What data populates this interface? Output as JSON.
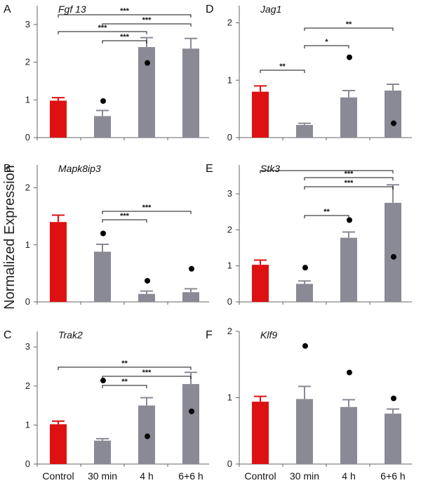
{
  "figure": {
    "ylabel": "Normalized Expression",
    "categories": [
      "Control",
      "30 min",
      "4 h",
      "6+6 h"
    ],
    "colors": {
      "control": "#dd1111",
      "treatment": "#8a8a96",
      "axis": "#666666"
    }
  },
  "chart_data": [
    {
      "type": "bar",
      "panel": "A",
      "gene": "Fgf 13",
      "categories": [
        "Control",
        "30 min",
        "4 h",
        "6+6 h"
      ],
      "values": [
        0.98,
        0.57,
        2.4,
        2.36
      ],
      "errors": [
        0.08,
        0.15,
        0.25,
        0.27
      ],
      "points": [
        null,
        0.97,
        1.98,
        null
      ],
      "ylim": [
        0,
        3.5
      ],
      "yticks": [
        0,
        1,
        2,
        3
      ],
      "significance": [
        {
          "from": 1,
          "to": 2,
          "label": "***",
          "level": 0
        },
        {
          "from": 0,
          "to": 2,
          "label": "***",
          "level": 1
        },
        {
          "from": 1,
          "to": 3,
          "label": "***",
          "level": 2
        },
        {
          "from": 0,
          "to": 3,
          "label": "***",
          "level": 3
        }
      ]
    },
    {
      "type": "bar",
      "panel": "B",
      "gene": "Mapk8ip3",
      "categories": [
        "Control",
        "30 min",
        "4 h",
        "6+6 h"
      ],
      "values": [
        1.4,
        0.88,
        0.14,
        0.17
      ],
      "errors": [
        0.12,
        0.13,
        0.05,
        0.06
      ],
      "points": [
        null,
        1.2,
        0.37,
        0.58
      ],
      "ylim": [
        0,
        2.4
      ],
      "yticks": [
        0,
        1,
        2
      ],
      "significance": [
        {
          "from": 1,
          "to": 2,
          "label": "***",
          "level": 0
        },
        {
          "from": 1,
          "to": 3,
          "label": "***",
          "level": 1
        }
      ]
    },
    {
      "type": "bar",
      "panel": "C",
      "gene": "Trak2",
      "categories": [
        "Control",
        "30 min",
        "4 h",
        "6+6 h"
      ],
      "values": [
        1.02,
        0.6,
        1.5,
        2.05
      ],
      "errors": [
        0.08,
        0.05,
        0.2,
        0.3
      ],
      "points": [
        null,
        2.14,
        0.71,
        1.35
      ],
      "ylim": [
        0,
        3.4
      ],
      "yticks": [
        0,
        1,
        2,
        3
      ],
      "significance": [
        {
          "from": 1,
          "to": 2,
          "label": "**",
          "level": 0
        },
        {
          "from": 1,
          "to": 3,
          "label": "***",
          "level": 1
        },
        {
          "from": 0,
          "to": 3,
          "label": "**",
          "level": 2
        }
      ]
    },
    {
      "type": "bar",
      "panel": "D",
      "gene": "Jag1",
      "categories": [
        "Control",
        "30 min",
        "4 h",
        "6+6 h"
      ],
      "values": [
        0.8,
        0.22,
        0.7,
        0.82
      ],
      "errors": [
        0.1,
        0.03,
        0.12,
        0.11
      ],
      "points": [
        null,
        null,
        1.4,
        0.25
      ],
      "ylim": [
        0,
        2.3
      ],
      "yticks": [
        0,
        1,
        2
      ],
      "significance": [
        {
          "from": 0,
          "to": 1,
          "label": "**",
          "level": 0
        },
        {
          "from": 1,
          "to": 2,
          "label": "*",
          "level": 0
        },
        {
          "from": 1,
          "to": 3,
          "label": "**",
          "level": 1
        }
      ]
    },
    {
      "type": "bar",
      "panel": "E",
      "gene": "Stk3",
      "categories": [
        "Control",
        "30 min",
        "4 h",
        "6+6 h"
      ],
      "values": [
        1.03,
        0.5,
        1.78,
        2.75
      ],
      "errors": [
        0.13,
        0.08,
        0.16,
        0.5
      ],
      "points": [
        null,
        0.95,
        2.27,
        1.25
      ],
      "ylim": [
        0,
        3.8
      ],
      "yticks": [
        0,
        1,
        2,
        3
      ],
      "significance": [
        {
          "from": 1,
          "to": 2,
          "label": "**",
          "level": 0
        },
        {
          "from": 1,
          "to": 3,
          "label": "***",
          "level": 1
        },
        {
          "from": 1,
          "to": 3,
          "label": "***",
          "level": 2
        },
        {
          "from": 0,
          "to": 3,
          "label": "",
          "level": 3
        }
      ]
    },
    {
      "type": "bar",
      "panel": "F",
      "gene": "Klf9",
      "categories": [
        "Control",
        "30 min",
        "4 h",
        "6+6 h"
      ],
      "values": [
        0.94,
        0.98,
        0.86,
        0.76
      ],
      "errors": [
        0.08,
        0.19,
        0.11,
        0.07
      ],
      "points": [
        null,
        1.78,
        1.38,
        0.99
      ],
      "ylim": [
        0,
        2.0
      ],
      "yticks": [
        0,
        1,
        2
      ],
      "significance": []
    }
  ]
}
